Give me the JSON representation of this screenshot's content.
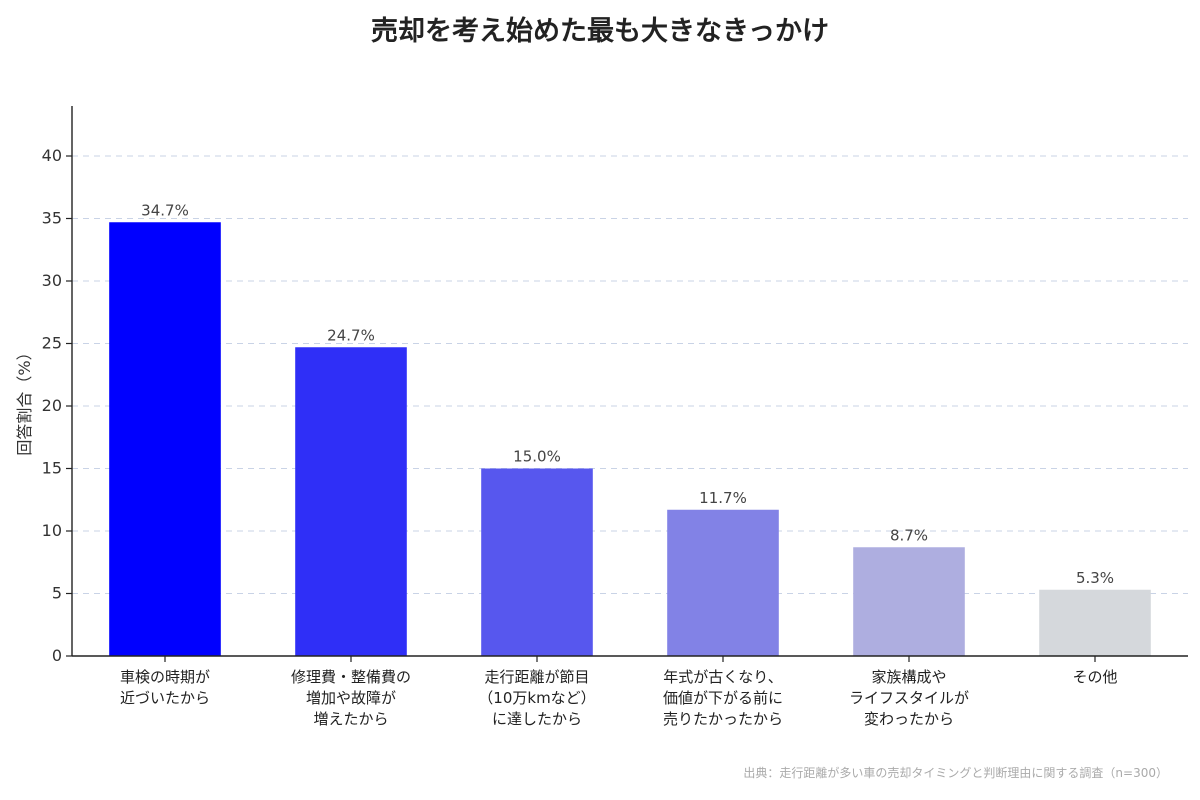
{
  "chart_data": {
    "type": "bar",
    "title": "売却を考え始めた最も大きなきっかけ",
    "ylabel": "回答割合（%）",
    "xlabel": "",
    "ylim": [
      0,
      44
    ],
    "yticks": [
      0,
      5,
      10,
      15,
      20,
      25,
      30,
      35,
      40
    ],
    "grid": true,
    "categories": [
      [
        "車検の時期が",
        "近づいたから"
      ],
      [
        "修理費・整備費の",
        "増加や故障が",
        "増えたから"
      ],
      [
        "走行距離が節目",
        "（10万kmなど）",
        "に達したから"
      ],
      [
        "年式が古くなり、",
        "価値が下がる前に",
        "売りたかったから"
      ],
      [
        "家族構成や",
        "ライフスタイルが",
        "変わったから"
      ],
      [
        "その他"
      ]
    ],
    "values": [
      34.7,
      24.7,
      15.0,
      11.7,
      8.7,
      5.3
    ],
    "value_labels": [
      "34.7%",
      "24.7%",
      "15.0%",
      "11.7%",
      "8.7%",
      "5.3%"
    ],
    "colors": [
      "#0000ff",
      "#2f2ff7",
      "#5757ee",
      "#8282e6",
      "#aeaee0",
      "#d5d8dc"
    ],
    "source": "出典：走行距離が多い車の売却タイミングと判断理由に関する調査（n=300）"
  }
}
